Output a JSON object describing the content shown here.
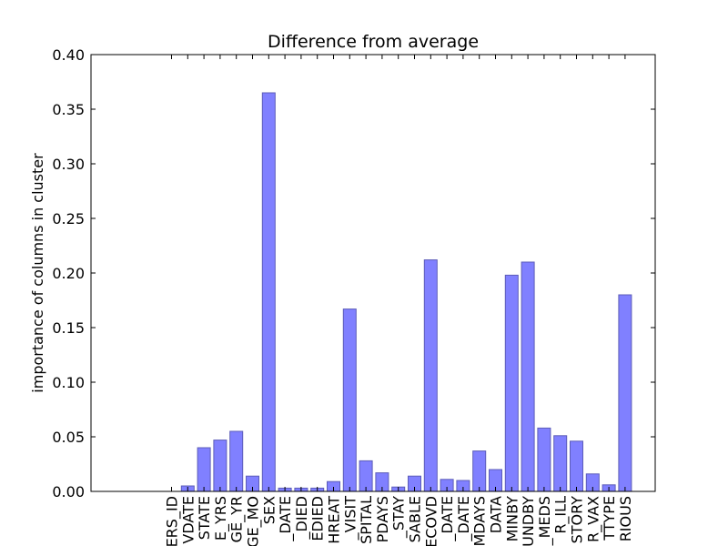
{
  "chart_data": {
    "type": "bar",
    "title": "Difference from average",
    "xlabel": "",
    "ylabel": "importance of columns in cluster",
    "ylim": [
      0,
      0.4
    ],
    "yticks": [
      0.0,
      0.05,
      0.1,
      0.15,
      0.2,
      0.25,
      0.3,
      0.35,
      0.4
    ],
    "ytick_labels": [
      "0.00",
      "0.05",
      "0.10",
      "0.15",
      "0.20",
      "0.25",
      "0.30",
      "0.35",
      "0.40"
    ],
    "grid": false,
    "bar_color": "#8080ff",
    "bar_edge_color": "#5c5cb8",
    "categories": [
      "ERS_ID",
      "VDATE",
      "STATE",
      "E_YRS",
      "GE_YR",
      "GE_MO",
      "SEX",
      "_DATE",
      "_DIED",
      "EDIED",
      "HREAT",
      "_VISIT",
      "SPITAL",
      "PDAYS",
      "_STAY",
      "SABLE",
      "ECOVD",
      "_DATE",
      "_DATE",
      "MDAYS",
      "DATA",
      "MINBY",
      "UNDBY",
      "_MEDS",
      "R_ILL",
      "STORY",
      "R_VAX",
      "TTYPE",
      "RIOUS"
    ],
    "values": [
      0.0,
      0.005,
      0.04,
      0.047,
      0.055,
      0.014,
      0.365,
      0.003,
      0.003,
      0.003,
      0.009,
      0.167,
      0.028,
      0.017,
      0.004,
      0.014,
      0.212,
      0.011,
      0.01,
      0.037,
      0.02,
      0.198,
      0.21,
      0.058,
      0.051,
      0.046,
      0.016,
      0.006,
      0.18
    ]
  }
}
